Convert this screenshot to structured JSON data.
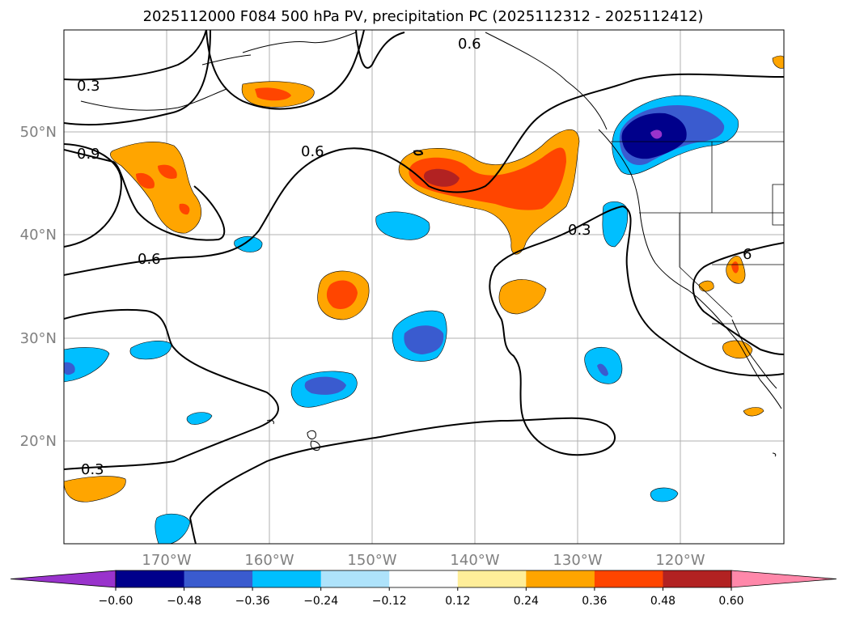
{
  "title": "2025112000 F084 500 hPa PV, precipitation PC (2025112312 - 2025112412)",
  "map": {
    "lat_labels": [
      "50°N",
      "40°N",
      "30°N",
      "20°N"
    ],
    "lon_labels": [
      "170°W",
      "160°W",
      "150°W",
      "140°W",
      "130°W",
      "120°W"
    ],
    "contour_labels": [
      {
        "text": "0.3"
      },
      {
        "text": "0.9"
      },
      {
        "text": "0.6"
      },
      {
        "text": "0.6"
      },
      {
        "text": "0.6"
      },
      {
        "text": "0.3"
      },
      {
        "text": "6"
      },
      {
        "text": "0.3"
      }
    ]
  },
  "colorbar": {
    "colors": [
      "#9933cc",
      "#00008b",
      "#3a5bcf",
      "#00bfff",
      "#aee3fb",
      "#ffffff",
      "#ffee99",
      "#ffa500",
      "#ff4500",
      "#b22222",
      "#ff88aa"
    ],
    "tick_labels": [
      "−0.60",
      "−0.48",
      "−0.36",
      "−0.24",
      "−0.12",
      "0.12",
      "0.24",
      "0.36",
      "0.48",
      "0.60"
    ]
  },
  "legend_colors": {
    "orange": "#ffa500",
    "red_orange": "#ff4500",
    "dark_red": "#b22222",
    "sky_blue": "#00bfff",
    "royal_blue": "#3a5bcf",
    "navy": "#00008b",
    "purple": "#9933cc"
  }
}
